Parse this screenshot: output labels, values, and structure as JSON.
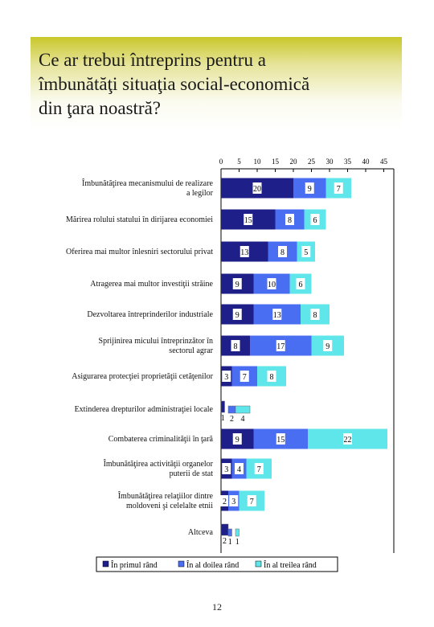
{
  "title": "Ce ar trebui întreprins pentru a\nîmbunătăţi situaţia social-economică\ndin ţara noastră?",
  "page_number": "12",
  "colors": {
    "series1": "#1f1f8a",
    "series2": "#4a6ef2",
    "series3": "#5fe6ea"
  },
  "chart_data": {
    "type": "bar",
    "stacked": true,
    "orientation": "horizontal",
    "xlim": [
      0,
      45
    ],
    "ticks": [
      0,
      5,
      10,
      15,
      20,
      25,
      30,
      35,
      40,
      45
    ],
    "legend_position": "bottom",
    "categories": [
      "Îmbunătăţirea mecanismului de realizare a legilor",
      "Mărirea rolului statului în dirijarea economiei",
      "Oferirea mai multor înlesniri sectorului privat",
      "Atragerea mai multor investiţii străine",
      "Dezvoltarea întreprinderilor industriale",
      "Sprijinirea micului întreprinzător în sectorul agrar",
      "Asigurarea protecţiei proprietăţii cetăţenilor",
      "Extinderea drepturilor administraţiei locale",
      "Combaterea criminalităţii în ţară",
      "Îmbunătăţirea activităţii organelor puterii de stat",
      "Îmbunătăţirea relaţiilor dintre moldoveni şi celelalte etnii",
      "Altceva"
    ],
    "series": [
      {
        "name": "În primul rând",
        "values": [
          20,
          15,
          13,
          9,
          9,
          8,
          3,
          1,
          9,
          3,
          2,
          2
        ]
      },
      {
        "name": "În al doilea rând",
        "values": [
          9,
          8,
          8,
          10,
          13,
          17,
          7,
          2,
          15,
          4,
          3,
          1
        ]
      },
      {
        "name": "În al treilea rând",
        "values": [
          7,
          6,
          5,
          6,
          8,
          9,
          8,
          4,
          22,
          7,
          7,
          1
        ]
      }
    ]
  }
}
